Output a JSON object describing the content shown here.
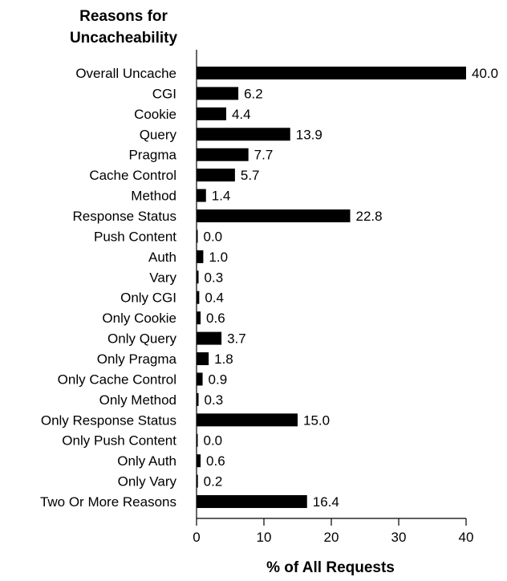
{
  "chart_data": {
    "type": "bar",
    "orientation": "horizontal",
    "title_lines": [
      "Reasons for",
      "Uncacheability"
    ],
    "xlabel": "% of All Requests",
    "xlim": [
      0,
      40
    ],
    "xticks": [
      0,
      10,
      20,
      30,
      40
    ],
    "grid": false,
    "bar_color": "#000000",
    "categories": [
      "Overall Uncache",
      "CGI",
      "Cookie",
      "Query",
      "Pragma",
      "Cache Control",
      "Method",
      "Response Status",
      "Push Content",
      "Auth",
      "Vary",
      "Only CGI",
      "Only Cookie",
      "Only Query",
      "Only Pragma",
      "Only Cache Control",
      "Only Method",
      "Only Response Status",
      "Only Push Content",
      "Only Auth",
      "Only Vary",
      "Two Or More Reasons"
    ],
    "values": [
      40.0,
      6.2,
      4.4,
      13.9,
      7.7,
      5.7,
      1.4,
      22.8,
      0.0,
      1.0,
      0.3,
      0.4,
      0.6,
      3.7,
      1.8,
      0.9,
      0.3,
      15.0,
      0.0,
      0.6,
      0.2,
      16.4
    ],
    "value_labels": [
      "40.0",
      "6.2",
      "4.4",
      "13.9",
      "7.7",
      "5.7",
      "1.4",
      "22.8",
      "0.0",
      "1.0",
      "0.3",
      "0.4",
      "0.6",
      "3.7",
      "1.8",
      "0.9",
      "0.3",
      "15.0",
      "0.0",
      "0.6",
      "0.2",
      "16.4"
    ]
  }
}
